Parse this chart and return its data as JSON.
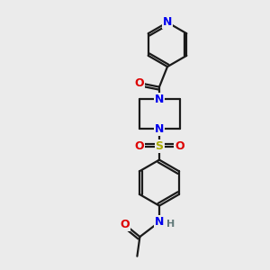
{
  "bg_color": "#ebebeb",
  "bond_color": "#1a1a1a",
  "bond_width": 1.6,
  "atom_colors": {
    "N": "#0000ee",
    "O": "#dd0000",
    "S": "#aaaa00",
    "C": "#1a1a1a",
    "H": "#607878"
  },
  "fig_w": 3.0,
  "fig_h": 3.0,
  "dpi": 100
}
